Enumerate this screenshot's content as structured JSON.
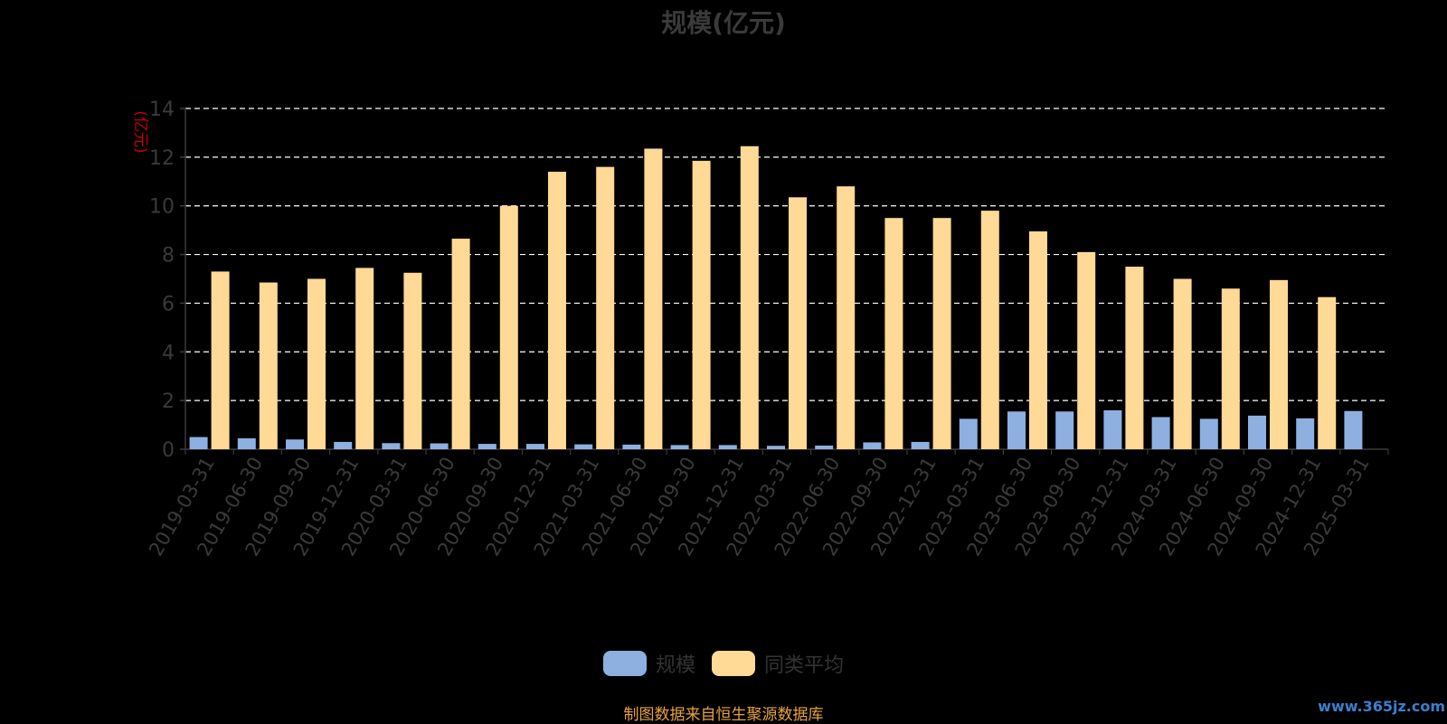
{
  "chart_data": {
    "type": "bar",
    "title": "规模(亿元)",
    "ylabel": "(亿元)",
    "ylim": [
      0,
      14
    ],
    "yticks": [
      0,
      2,
      4,
      6,
      8,
      10,
      12,
      14
    ],
    "grid": true,
    "legend_position": "bottom-center",
    "categories": [
      "2019-03-31",
      "2019-06-30",
      "2019-09-30",
      "2019-12-31",
      "2020-03-31",
      "2020-06-30",
      "2020-09-30",
      "2020-12-31",
      "2021-03-31",
      "2021-06-30",
      "2021-09-30",
      "2021-12-31",
      "2022-03-31",
      "2022-06-30",
      "2022-09-30",
      "2022-12-31",
      "2023-03-31",
      "2023-06-30",
      "2023-09-30",
      "2023-12-31",
      "2024-03-31",
      "2024-06-30",
      "2024-09-30",
      "2024-12-31",
      "2025-03-31"
    ],
    "series": [
      {
        "name": "规模",
        "color": "#8eb0e0",
        "values": [
          0.5,
          0.45,
          0.4,
          0.3,
          0.25,
          0.24,
          0.22,
          0.22,
          0.2,
          0.19,
          0.17,
          0.17,
          0.14,
          0.15,
          0.28,
          0.3,
          1.25,
          1.55,
          1.55,
          1.6,
          1.32,
          1.25,
          1.38,
          1.27,
          1.57
        ]
      },
      {
        "name": "同类平均",
        "color": "#ffd996",
        "values": [
          7.3,
          6.85,
          7.0,
          7.45,
          7.25,
          8.65,
          10.0,
          11.4,
          11.6,
          12.35,
          11.85,
          12.45,
          10.35,
          10.8,
          9.5,
          9.5,
          9.8,
          8.95,
          8.1,
          7.5,
          7.0,
          6.6,
          6.95,
          6.25,
          null
        ]
      }
    ]
  },
  "source_note": "制图数据来自恒生聚源数据库",
  "watermark": "www.365jz.com",
  "colors": {
    "background": "#000000",
    "axis_text": "#3a3a3a",
    "ylabel": "#cc0000",
    "grid": "#ffffff"
  }
}
